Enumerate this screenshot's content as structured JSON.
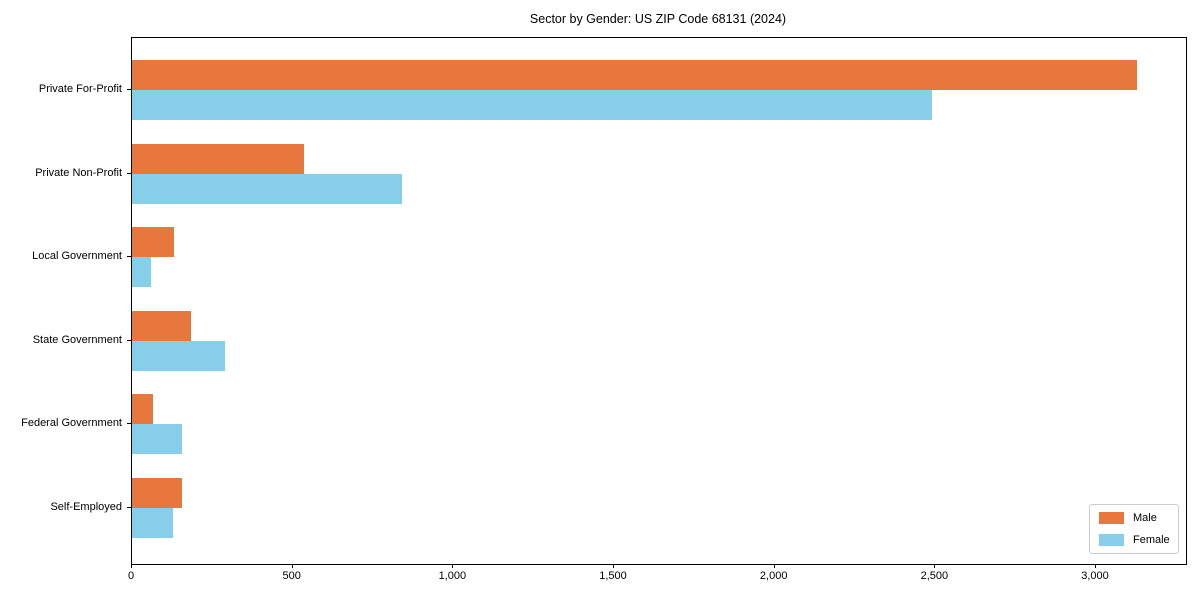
{
  "title": "Sector by Gender: US ZIP Code 68131 (2024)",
  "chart_data": {
    "type": "bar",
    "orientation": "horizontal",
    "title": "Sector by Gender: US ZIP Code 68131 (2024)",
    "categories": [
      "Private For-Profit",
      "Private Non-Profit",
      "Local Government",
      "State Government",
      "Federal Government",
      "Self-Employed"
    ],
    "series": [
      {
        "name": "Male",
        "color": "#e8773e",
        "values": [
          3128,
          536,
          130,
          185,
          64,
          155
        ]
      },
      {
        "name": "Female",
        "color": "#87ceeb",
        "values": [
          2490,
          840,
          60,
          289,
          156,
          127
        ]
      }
    ],
    "xlabel": "",
    "ylabel": "",
    "xlim": [
      0,
      3280
    ],
    "xticks": [
      0,
      500,
      1000,
      1500,
      2000,
      2500,
      3000
    ],
    "xtick_labels": [
      "0",
      "500",
      "1,000",
      "1,500",
      "2,000",
      "2,500",
      "3,000"
    ],
    "grid": false,
    "legend": {
      "position": "lower right",
      "entries": [
        "Male",
        "Female"
      ]
    }
  }
}
